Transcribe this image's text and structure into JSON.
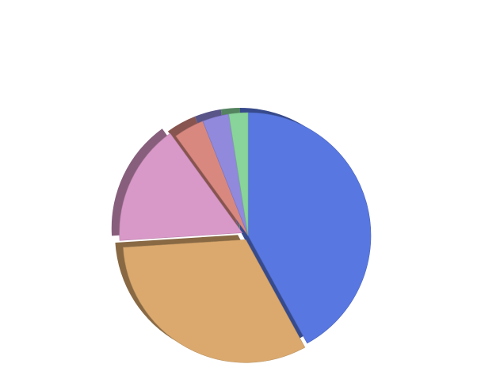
{
  "chart_data": {
    "type": "pie",
    "values": [
      42,
      32,
      16,
      4,
      3.5,
      2.5
    ],
    "colors": [
      "#5877e0",
      "#dba96e",
      "#d999c8",
      "#d98880",
      "#9089dc",
      "#88d49a"
    ]
  }
}
